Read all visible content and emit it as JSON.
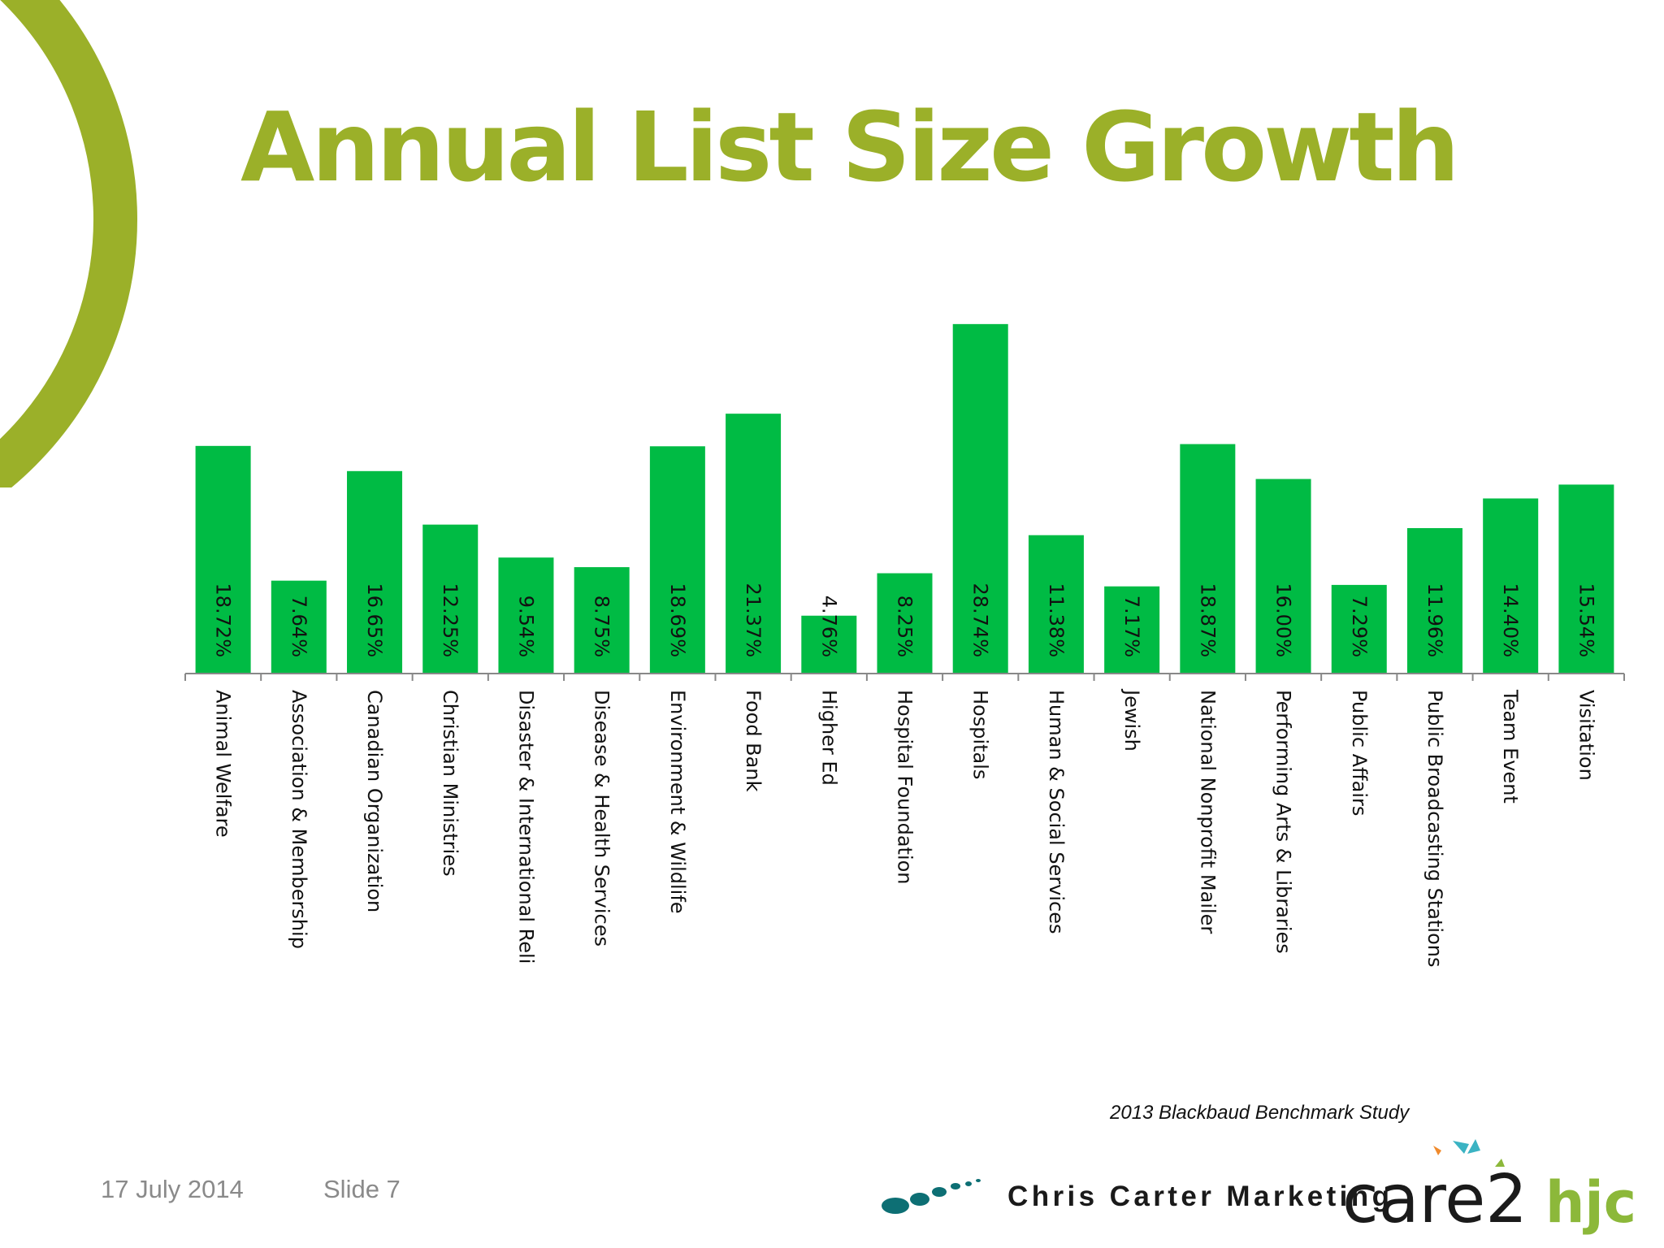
{
  "slide": {
    "title": "Annual List Size Growth",
    "source": "2013 Blackbaud Benchmark Study",
    "date": "17 July 2014",
    "slide_number": "Slide 7"
  },
  "brands": {
    "partner1": "Chris Carter Marketing",
    "partner2": "care2",
    "partner3": "hjc"
  },
  "colors": {
    "accent": "#9bb029",
    "bar": "#00bb44",
    "care2_teal": "#0d6f74",
    "care2_green": "#7fbf3a",
    "hjc_green": "#8cb83a"
  },
  "chart_data": {
    "type": "bar",
    "title": "",
    "xlabel": "",
    "ylabel": "",
    "ylim": [
      0,
      30
    ],
    "grid": false,
    "legend": "none",
    "categories": [
      "Animal Welfare",
      "Association & Membership",
      "Canadian Organization",
      "Christian Ministries",
      "Disaster & International Reli",
      "Disease & Health Services",
      "Environment & Wildlife",
      "Food Bank",
      "Higher Ed",
      "Hospital Foundation",
      "Hospitals",
      "Human & Social Services",
      "Jewish",
      "National Nonprofit Mailer",
      "Performing Arts & Libraries",
      "Public Affairs",
      "Public Broadcasting Stations",
      "Team Event",
      "Visitation"
    ],
    "values": [
      18.72,
      7.64,
      16.65,
      12.25,
      9.54,
      8.75,
      18.69,
      21.37,
      4.76,
      8.25,
      28.74,
      11.38,
      7.17,
      18.87,
      16.0,
      7.29,
      11.96,
      14.4,
      15.54
    ],
    "data_labels": [
      "18.72%",
      "7.64%",
      "16.65%",
      "12.25%",
      "9.54%",
      "8.75%",
      "18.69%",
      "21.37%",
      "4.76%",
      "8.25%",
      "28.74%",
      "11.38%",
      "7.17%",
      "18.87%",
      "16.00%",
      "7.29%",
      "11.96%",
      "14.40%",
      "15.54%"
    ]
  }
}
